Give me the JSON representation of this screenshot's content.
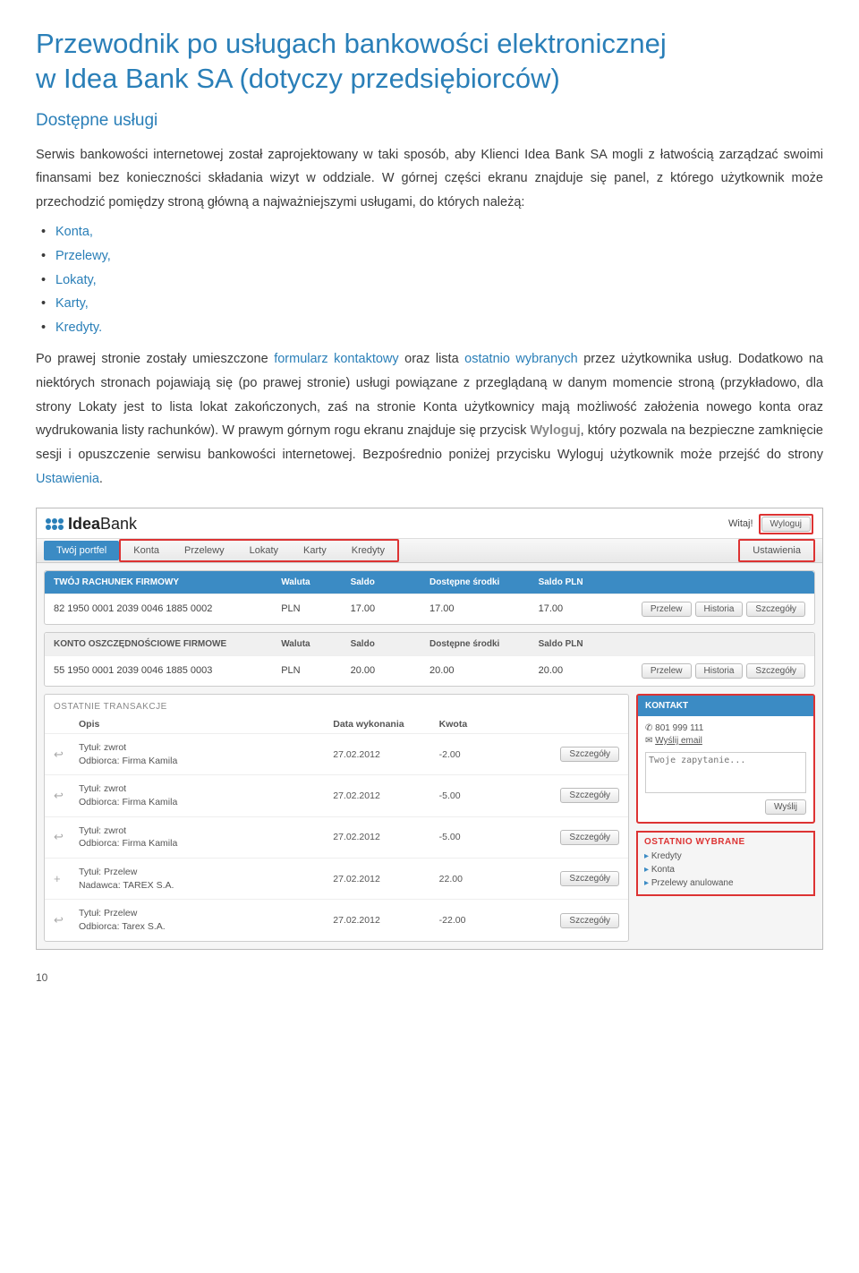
{
  "title_line1": "Przewodnik po usługach bankowości elektronicznej",
  "title_line2": "w Idea Bank SA (dotyczy przedsiębiorców)",
  "subtitle": "Dostępne usługi",
  "para1": "Serwis bankowości internetowej został zaprojektowany w taki sposób, aby Klienci Idea Bank SA mogli z łatwością zarządzać swoimi finansami bez konieczności składania wizyt w oddziale. W górnej części ekranu znajduje się panel, z którego użytkownik może przechodzić pomiędzy stroną główną a najważniejszymi usługami, do których należą:",
  "bullets": [
    "Konta,",
    "Przelewy,",
    "Lokaty,",
    "Karty,",
    "Kredyty."
  ],
  "para2_a": "Po prawej stronie zostały umieszczone ",
  "para2_link1": "formularz kontaktowy",
  "para2_b": " oraz lista ",
  "para2_link2": "ostatnio wybranych",
  "para2_c": " przez użytkownika usług. Dodatkowo na niektórych stronach pojawiają się (po prawej stronie) usługi powiązane z przeglądaną w danym momencie stroną (przykładowo, dla strony Lokaty jest to lista lokat zakończonych, zaś na stronie Konta użytkownicy mają możliwość założenia nowego konta oraz wydrukowania listy rachunków). W prawym górnym rogu ekranu znajduje się przycisk ",
  "para2_bold": "Wyloguj",
  "para2_d": ", który pozwala na bezpieczne zamknięcie sesji i opuszczenie serwisu bankowości internetowej. Bezpośrednio poniżej przycisku Wyloguj użytkownik może przejść do strony ",
  "para2_link3": "Ustawienia",
  "para2_e": ".",
  "shot": {
    "logo_a": "Idea",
    "logo_b": "Bank",
    "welcome": "Witaj!",
    "logout": "Wyloguj",
    "nav_active": "Twój portfel",
    "nav_items": [
      "Konta",
      "Przelewy",
      "Lokaty",
      "Karty",
      "Kredyty"
    ],
    "nav_settings": "Ustawienia",
    "acc1": {
      "head": [
        "TWÓJ RACHUNEK FIRMOWY",
        "Waluta",
        "Saldo",
        "Dostępne środki",
        "Saldo PLN",
        ""
      ],
      "num": "82 1950 0001 2039 0046 1885 0002",
      "cur": "PLN",
      "s": "17.00",
      "d": "17.00",
      "p": "17.00"
    },
    "acc2": {
      "head": [
        "KONTO OSZCZĘDNOŚCIOWE FIRMOWE",
        "Waluta",
        "Saldo",
        "Dostępne środki",
        "Saldo PLN",
        ""
      ],
      "num": "55 1950 0001 2039 0046 1885 0003",
      "cur": "PLN",
      "s": "20.00",
      "d": "20.00",
      "p": "20.00"
    },
    "btns": {
      "przelew": "Przelew",
      "historia": "Historia",
      "szczegoly": "Szczegóły"
    },
    "trans": {
      "title": "OSTATNIE TRANSAKCJE",
      "cols": [
        "Opis",
        "Data wykonania",
        "Kwota"
      ],
      "rows": [
        {
          "icon": "↩",
          "t1": "Tytuł: zwrot",
          "t2": "Odbiorca: Firma Kamila",
          "date": "27.02.2012",
          "amt": "-2.00"
        },
        {
          "icon": "↩",
          "t1": "Tytuł: zwrot",
          "t2": "Odbiorca: Firma Kamila",
          "date": "27.02.2012",
          "amt": "-5.00"
        },
        {
          "icon": "↩",
          "t1": "Tytuł: zwrot",
          "t2": "Odbiorca: Firma Kamila",
          "date": "27.02.2012",
          "amt": "-5.00"
        },
        {
          "icon": "+",
          "t1": "Tytuł: Przelew",
          "t2": "Nadawca: TAREX S.A.",
          "date": "27.02.2012",
          "amt": "22.00"
        },
        {
          "icon": "↩",
          "t1": "Tytuł: Przelew",
          "t2": "Odbiorca: Tarex S.A.",
          "date": "27.02.2012",
          "amt": "-22.00"
        }
      ]
    },
    "kontakt": {
      "title": "KONTAKT",
      "phone": "801 999 111",
      "email": "Wyślij email",
      "placeholder": "Twoje zapytanie...",
      "send": "Wyślij"
    },
    "recent": {
      "title": "OSTATNIO WYBRANE",
      "items": [
        "Kredyty",
        "Konta",
        "Przelewy anulowane"
      ]
    }
  },
  "pagenum": "10"
}
